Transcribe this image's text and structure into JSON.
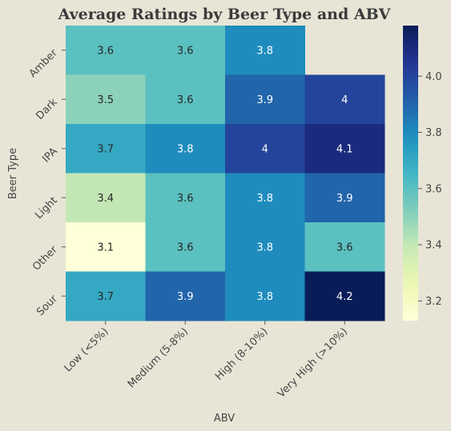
{
  "chart_data": {
    "type": "heatmap",
    "title": "Average Ratings by Beer Type and ABV",
    "xlabel": "ABV",
    "ylabel": "Beer Type",
    "x_categories": [
      "Low (<5%)",
      "Medium (5-8%)",
      "High (8-10%)",
      "Very High (>10%)"
    ],
    "y_categories": [
      "Amber",
      "Dark",
      "IPA",
      "Light",
      "Other",
      "Sour"
    ],
    "values": [
      [
        3.6,
        3.6,
        3.8,
        null
      ],
      [
        3.5,
        3.6,
        3.9,
        4.0
      ],
      [
        3.7,
        3.8,
        4.0,
        4.1
      ],
      [
        3.4,
        3.6,
        3.8,
        3.9
      ],
      [
        3.1,
        3.6,
        3.8,
        3.6
      ],
      [
        3.7,
        3.9,
        3.8,
        4.2
      ]
    ],
    "annotations": [
      [
        "3.6",
        "3.6",
        "3.8",
        ""
      ],
      [
        "3.5",
        "3.6",
        "3.9",
        "4"
      ],
      [
        "3.7",
        "3.8",
        "4",
        "4.1"
      ],
      [
        "3.4",
        "3.6",
        "3.8",
        "3.9"
      ],
      [
        "3.1",
        "3.6",
        "3.8",
        "3.6"
      ],
      [
        "3.7",
        "3.9",
        "3.8",
        "4.2"
      ]
    ],
    "colormap": "YlGnBu",
    "color_range": [
      3.13,
      4.18
    ],
    "colorbar_ticks": [
      "3.2",
      "3.4",
      "3.6",
      "3.8",
      "4.0"
    ],
    "grid": false,
    "legend": "colorbar-right"
  }
}
